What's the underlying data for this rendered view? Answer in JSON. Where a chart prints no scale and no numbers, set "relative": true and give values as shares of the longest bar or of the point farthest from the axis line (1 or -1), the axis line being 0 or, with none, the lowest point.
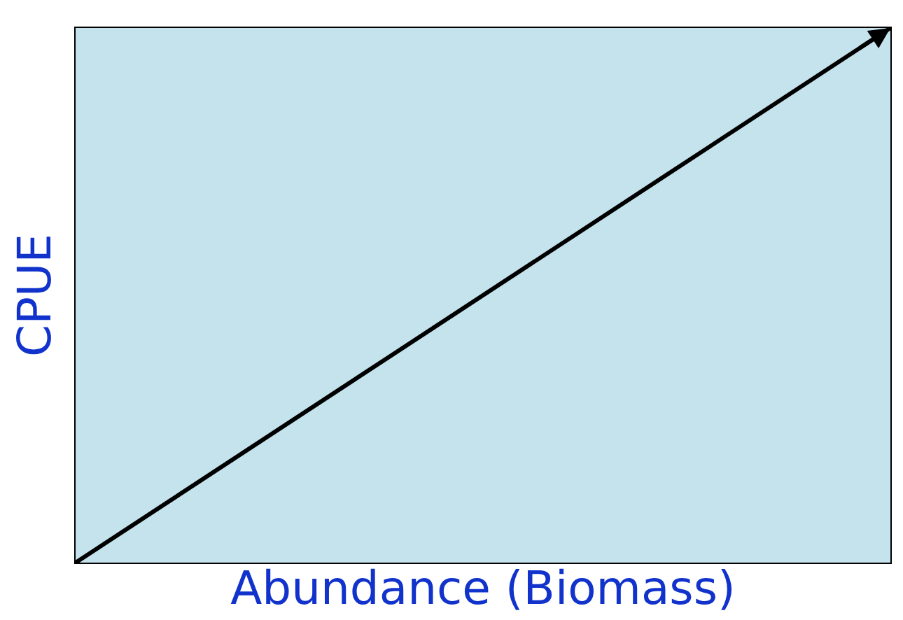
{
  "chart_data": {
    "type": "line",
    "relative": true,
    "xlabel": "Abundance (Biomass)",
    "ylabel": "CPUE",
    "categories": [
      null,
      null
    ],
    "series": [
      {
        "color": "#000000",
        "values": [
          0,
          1
        ]
      }
    ],
    "grid": false,
    "tick_labels": false
  }
}
